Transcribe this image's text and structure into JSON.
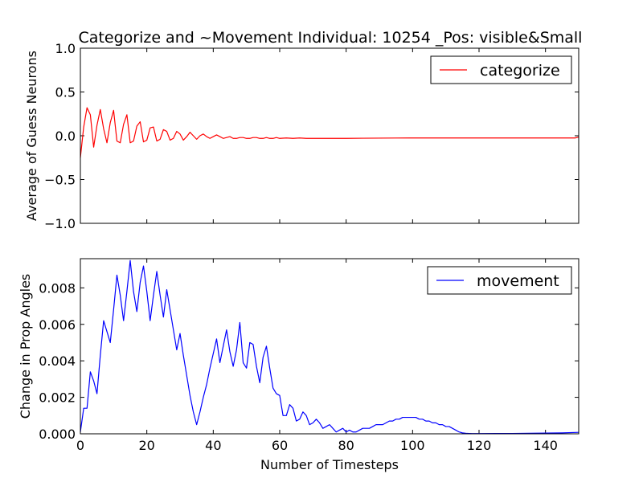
{
  "chart_data": [
    {
      "type": "line",
      "title": "Categorize and ~Movement Individual: 10254 _Pos: visible&Small",
      "xlabel": "",
      "ylabel": "Average of Guess Neurons",
      "xlim": [
        0,
        150
      ],
      "ylim": [
        -1.0,
        1.0
      ],
      "yticks": [
        1.0,
        0.5,
        0.0,
        -0.5,
        -1.0
      ],
      "ytick_labels": [
        "1.0",
        "0.5",
        "0.0",
        "−0.5",
        "−1.0"
      ],
      "legend_position": "top-right",
      "grid": false,
      "series": [
        {
          "name": "categorize",
          "color": "#ff0000",
          "x": [
            0,
            1,
            2,
            3,
            4,
            5,
            6,
            7,
            8,
            9,
            10,
            11,
            12,
            13,
            14,
            15,
            16,
            17,
            18,
            19,
            20,
            21,
            22,
            23,
            24,
            25,
            26,
            27,
            28,
            29,
            30,
            31,
            32,
            33,
            34,
            35,
            36,
            37,
            38,
            39,
            40,
            41,
            42,
            43,
            44,
            45,
            46,
            47,
            48,
            49,
            50,
            51,
            52,
            53,
            54,
            55,
            56,
            57,
            58,
            59,
            60,
            62,
            64,
            66,
            68,
            70,
            75,
            80,
            85,
            90,
            95,
            100,
            105,
            110,
            115,
            120,
            125,
            130,
            135,
            140,
            145,
            149,
            150
          ],
          "y": [
            -0.25,
            0.1,
            0.32,
            0.24,
            -0.13,
            0.12,
            0.3,
            0.08,
            -0.08,
            0.15,
            0.29,
            -0.06,
            -0.08,
            0.13,
            0.24,
            -0.08,
            -0.06,
            0.11,
            0.16,
            -0.07,
            -0.05,
            0.09,
            0.1,
            -0.06,
            -0.04,
            0.07,
            0.05,
            -0.05,
            -0.03,
            0.05,
            0.02,
            -0.05,
            -0.01,
            0.04,
            0.0,
            -0.04,
            0.0,
            0.02,
            -0.01,
            -0.03,
            -0.01,
            0.01,
            -0.01,
            -0.03,
            -0.02,
            -0.01,
            -0.03,
            -0.03,
            -0.02,
            -0.02,
            -0.03,
            -0.03,
            -0.02,
            -0.02,
            -0.03,
            -0.03,
            -0.02,
            -0.03,
            -0.03,
            -0.02,
            -0.03,
            -0.025,
            -0.03,
            -0.025,
            -0.03,
            -0.03,
            -0.03,
            -0.03,
            -0.028,
            -0.027,
            -0.026,
            -0.025,
            -0.025,
            -0.025,
            -0.025,
            -0.025,
            -0.025,
            -0.025,
            -0.025,
            -0.025,
            -0.025,
            -0.025,
            -0.015
          ]
        }
      ]
    },
    {
      "type": "line",
      "title": "",
      "xlabel": "Number of Timesteps",
      "ylabel": "Change in Prop Angles",
      "xlim": [
        0,
        150
      ],
      "ylim": [
        0,
        0.0096
      ],
      "xticks": [
        0,
        20,
        40,
        60,
        80,
        100,
        120,
        140
      ],
      "xtick_labels": [
        "0",
        "20",
        "40",
        "60",
        "80",
        "100",
        "120",
        "140"
      ],
      "yticks": [
        0.0,
        0.002,
        0.004,
        0.006,
        0.008
      ],
      "ytick_labels": [
        "0.000",
        "0.002",
        "0.004",
        "0.006",
        "0.008"
      ],
      "legend_position": "top-right",
      "grid": false,
      "series": [
        {
          "name": "movement",
          "color": "#0000ff",
          "x": [
            0,
            1,
            2,
            3,
            4,
            5,
            6,
            7,
            8,
            9,
            10,
            11,
            12,
            13,
            14,
            15,
            16,
            17,
            18,
            19,
            20,
            21,
            22,
            23,
            24,
            25,
            26,
            27,
            28,
            29,
            30,
            31,
            32,
            33,
            34,
            35,
            36,
            37,
            38,
            39,
            40,
            41,
            42,
            43,
            44,
            45,
            46,
            47,
            48,
            49,
            50,
            51,
            52,
            53,
            54,
            55,
            56,
            57,
            58,
            59,
            60,
            61,
            62,
            63,
            64,
            65,
            66,
            67,
            68,
            69,
            70,
            71,
            72,
            73,
            74,
            75,
            76,
            77,
            78,
            79,
            80,
            81,
            82,
            83,
            84,
            85,
            86,
            87,
            88,
            89,
            90,
            91,
            92,
            93,
            94,
            95,
            96,
            97,
            98,
            99,
            100,
            101,
            102,
            103,
            104,
            105,
            106,
            107,
            108,
            109,
            110,
            111,
            112,
            113,
            114,
            115,
            116,
            117,
            118,
            120,
            125,
            130,
            135,
            140,
            145,
            150
          ],
          "y": [
            0.0001,
            0.0014,
            0.0014,
            0.0034,
            0.0029,
            0.0022,
            0.0043,
            0.0062,
            0.0056,
            0.005,
            0.0068,
            0.0087,
            0.0076,
            0.0062,
            0.0078,
            0.0095,
            0.0078,
            0.0067,
            0.0083,
            0.0092,
            0.0078,
            0.0062,
            0.0076,
            0.0089,
            0.0076,
            0.0064,
            0.0079,
            0.0068,
            0.0057,
            0.0046,
            0.0055,
            0.0043,
            0.0032,
            0.0021,
            0.0012,
            0.0005,
            0.0012,
            0.002,
            0.0027,
            0.0036,
            0.0044,
            0.0052,
            0.0039,
            0.0048,
            0.0057,
            0.0045,
            0.0037,
            0.0046,
            0.0061,
            0.0039,
            0.0036,
            0.005,
            0.0049,
            0.0037,
            0.0028,
            0.0042,
            0.0048,
            0.0036,
            0.0025,
            0.0022,
            0.0021,
            0.001,
            0.001,
            0.0016,
            0.0014,
            0.0007,
            0.0008,
            0.0012,
            0.001,
            0.0005,
            0.0006,
            0.0008,
            0.0006,
            0.0003,
            0.0004,
            0.0005,
            0.0003,
            0.0001,
            0.0002,
            0.0003,
            0.0001,
            0.0002,
            0.0001,
            0.0001,
            0.0002,
            0.0003,
            0.0003,
            0.0003,
            0.0004,
            0.0005,
            0.0005,
            0.0005,
            0.0006,
            0.0007,
            0.0007,
            0.0008,
            0.0008,
            0.0009,
            0.0009,
            0.0009,
            0.0009,
            0.0009,
            0.0008,
            0.0008,
            0.0007,
            0.0007,
            0.0006,
            0.0006,
            0.0005,
            0.0005,
            0.0004,
            0.0004,
            0.0003,
            0.0002,
            0.0001,
            5e-05,
            3e-05,
            2e-05,
            1e-05,
            1e-05,
            2e-05,
            2e-05,
            3e-05,
            4e-05,
            5e-05,
            8e-05
          ]
        }
      ]
    }
  ]
}
